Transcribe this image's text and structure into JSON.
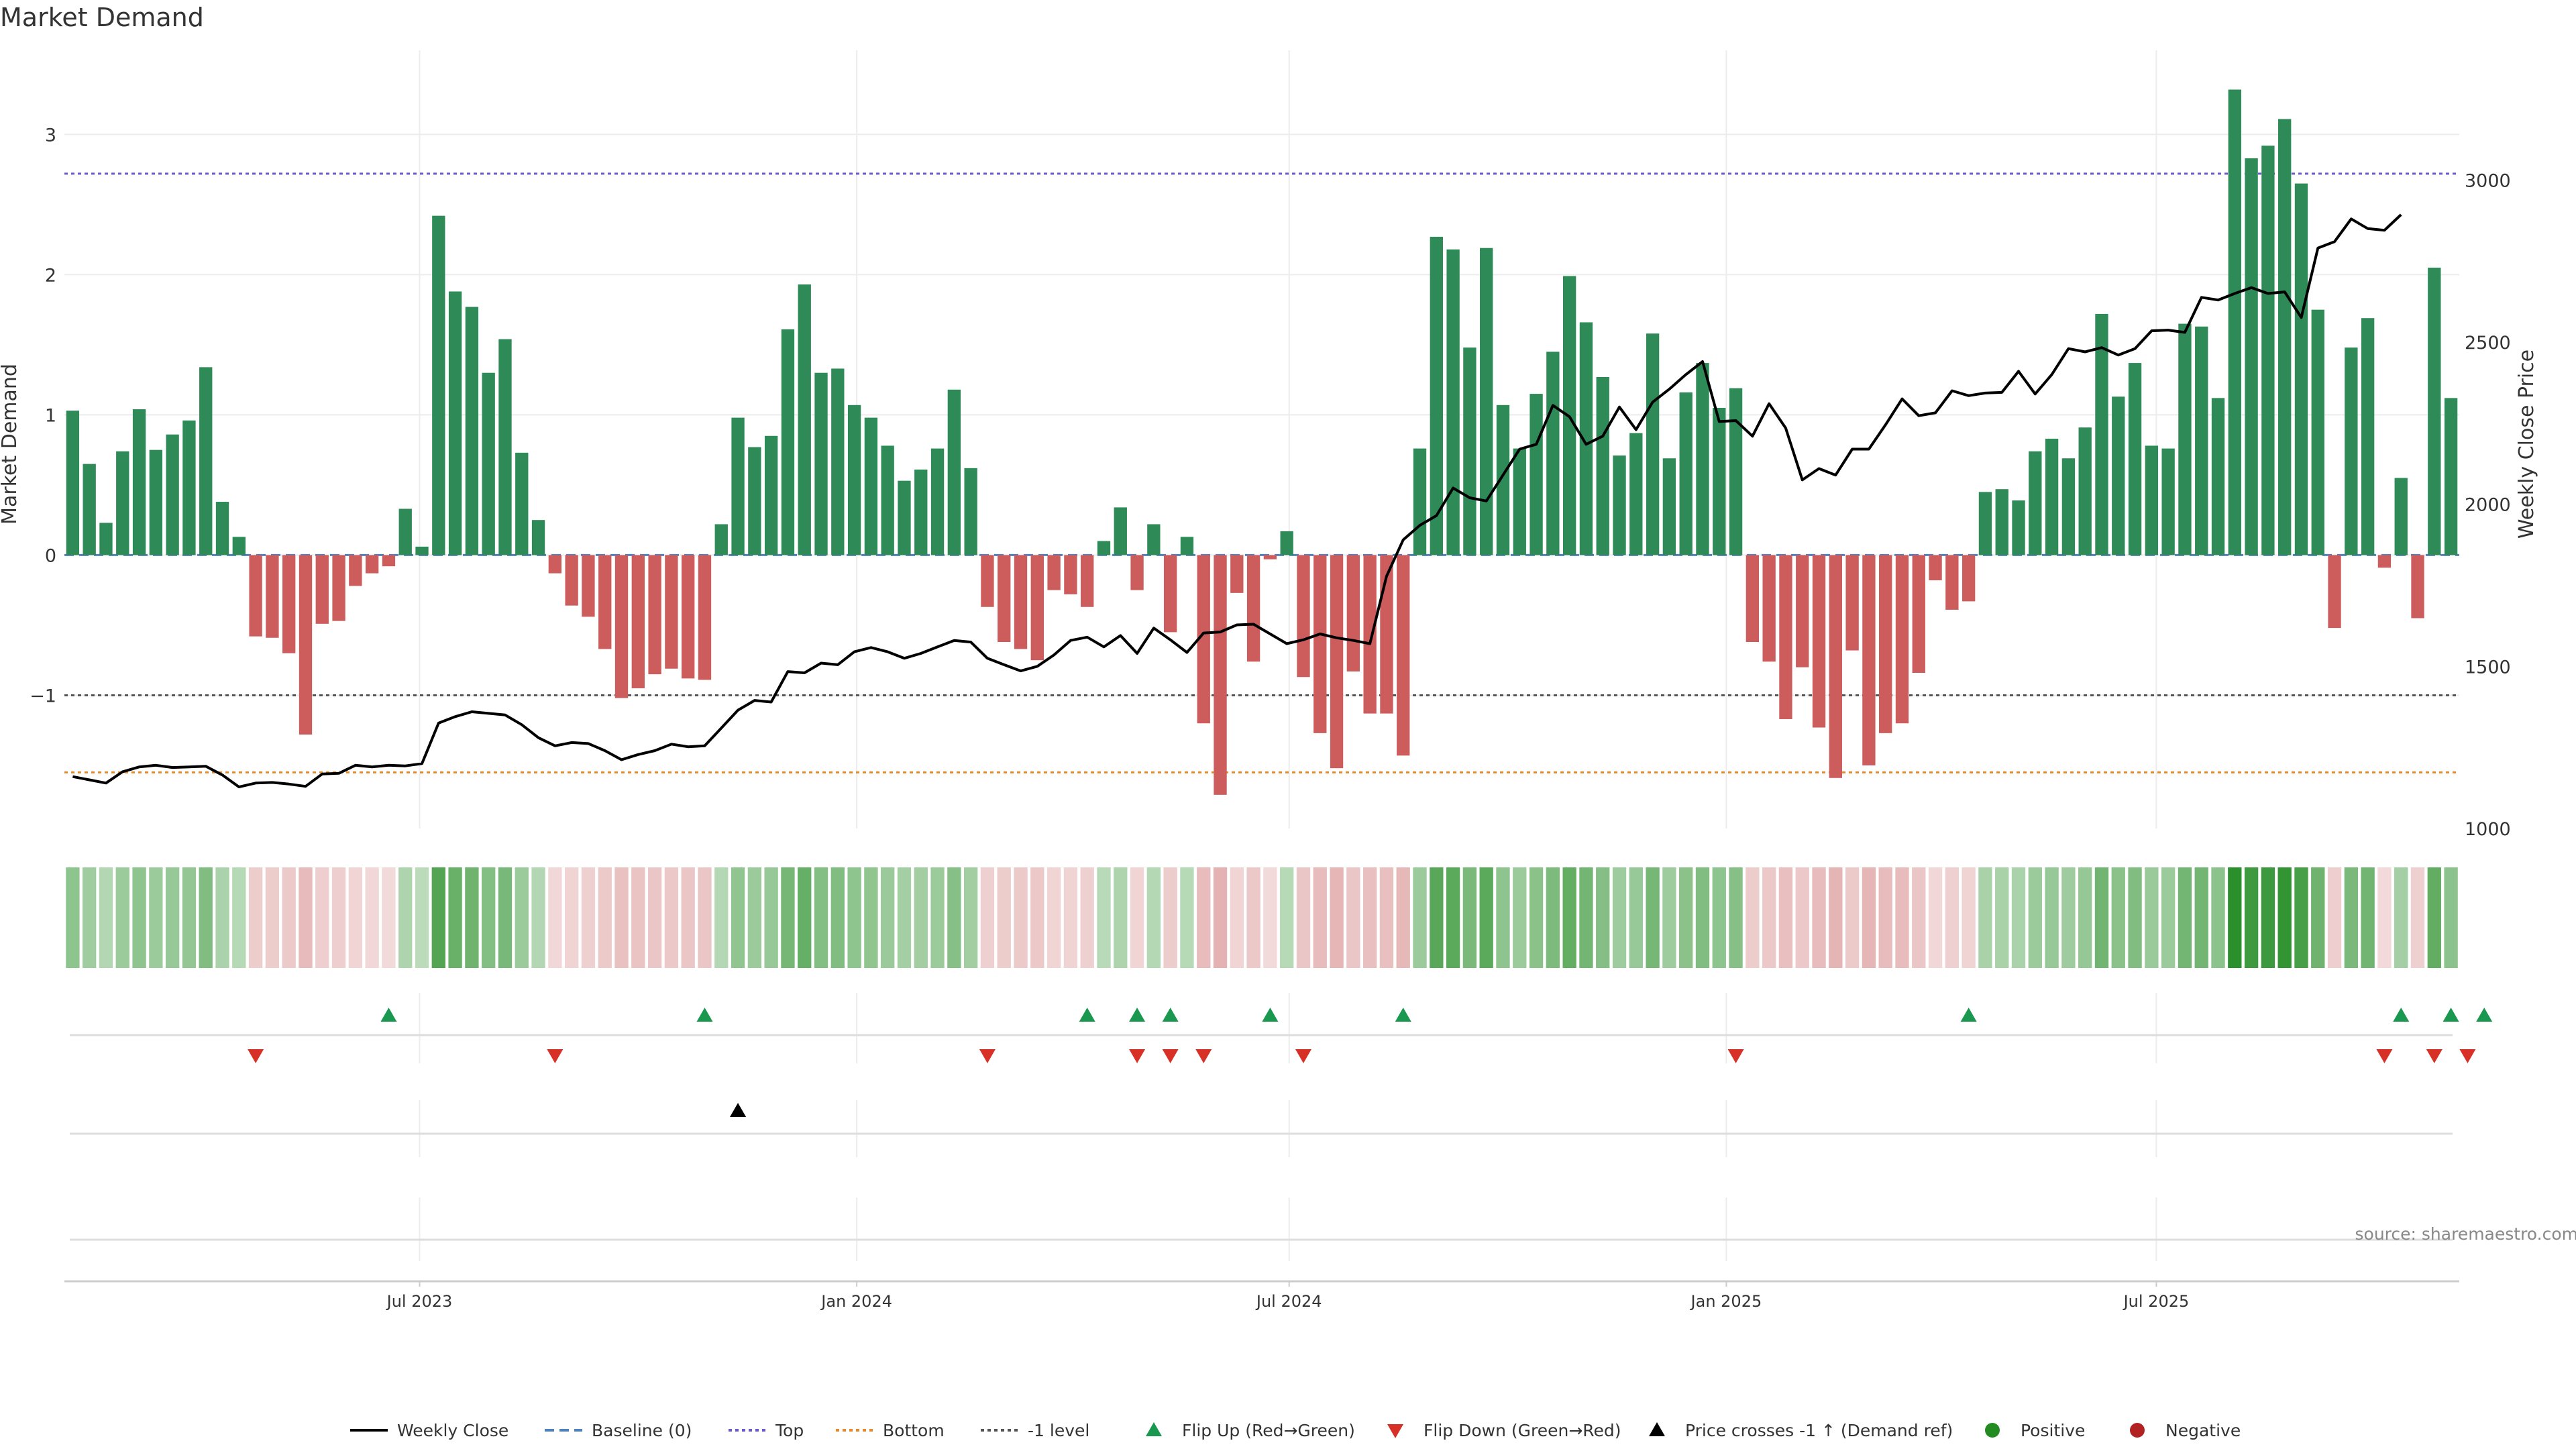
{
  "title": "Market Demand",
  "source": "source: sharemaestro.com",
  "colors": {
    "positive": "#2e8b57",
    "negative": "#cd5c5c",
    "price": "#000000",
    "baseline": "#4f81bd",
    "top": "#6a5acd",
    "bottom": "#e38b2c",
    "minus1": "#555555",
    "flip_up": "#1a9850",
    "flip_down": "#d73027",
    "cross": "#000000",
    "dot_positive": "#228b22",
    "dot_negative": "#b22222"
  },
  "chart_data": {
    "type": "bar",
    "ylabel_left": "Market Demand",
    "ylabel_right": "Weekly Close Price",
    "ylim_left": [
      -1.95,
      3.6
    ],
    "ylim_right": [
      1000,
      3400
    ],
    "yticks_left": [
      -1,
      0,
      1,
      2,
      3
    ],
    "yticks_left_labels": [
      "−1",
      "0",
      "1",
      "2",
      "3"
    ],
    "yticks_right": [
      1000,
      1500,
      2000,
      2500,
      3000
    ],
    "reference_lines": {
      "top": 2.72,
      "bottom": -1.55,
      "minus1": -1,
      "baseline": 0
    },
    "x_start": "2023-02-05",
    "x_step_days": 7,
    "xticks": [
      "2023-07-01",
      "2024-01-01",
      "2024-07-01",
      "2025-01-01",
      "2025-07-01"
    ],
    "xtick_labels": [
      "Jul 2023",
      "Jan 2024",
      "Jul 2024",
      "Jan 2025",
      "Jul 2025"
    ],
    "demand": [
      1.03,
      0.65,
      0.23,
      0.74,
      1.04,
      0.75,
      0.86,
      0.96,
      1.34,
      0.38,
      0.13,
      -0.58,
      -0.59,
      -0.7,
      -1.28,
      -0.49,
      -0.47,
      -0.22,
      -0.13,
      -0.08,
      0.33,
      0.06,
      2.42,
      1.88,
      1.77,
      1.3,
      1.54,
      0.73,
      0.25,
      -0.13,
      -0.36,
      -0.44,
      -0.67,
      -1.02,
      -0.95,
      -0.85,
      -0.81,
      -0.88,
      -0.89,
      0.22,
      0.98,
      0.77,
      0.85,
      1.61,
      1.93,
      1.3,
      1.33,
      1.07,
      0.98,
      0.78,
      0.53,
      0.61,
      0.76,
      1.18,
      0.62,
      -0.37,
      -0.62,
      -0.67,
      -0.75,
      -0.25,
      -0.28,
      -0.37,
      0.1,
      0.34,
      -0.25,
      0.22,
      -0.55,
      0.13,
      -1.2,
      -1.71,
      -0.27,
      -0.76,
      -0.03,
      0.17,
      -0.87,
      -1.27,
      -1.52,
      -0.83,
      -1.13,
      -1.13,
      -1.43,
      0.76,
      2.27,
      2.18,
      1.48,
      2.19,
      1.07,
      0.76,
      1.15,
      1.45,
      1.99,
      1.66,
      1.27,
      0.71,
      0.87,
      1.58,
      0.69,
      1.16,
      1.37,
      1.05,
      1.19,
      -0.62,
      -0.76,
      -1.17,
      -0.8,
      -1.23,
      -1.59,
      -0.68,
      -1.5,
      -1.27,
      -1.2,
      -0.84,
      -0.18,
      -0.39,
      -0.33,
      0.45,
      0.47,
      0.39,
      0.74,
      0.83,
      0.69,
      0.91,
      1.72,
      1.13,
      1.37,
      0.78,
      0.76,
      1.65,
      1.63,
      1.12,
      3.32,
      2.83,
      2.92,
      3.11,
      2.65,
      1.75,
      -0.52,
      1.48,
      1.69,
      -0.09,
      0.55,
      -0.45,
      2.05,
      1.12
    ],
    "price": [
      1160,
      1150,
      1140,
      1175,
      1190,
      1195,
      1188,
      1190,
      1192,
      1165,
      1128,
      1140,
      1142,
      1137,
      1130,
      1168,
      1170,
      1195,
      1190,
      1195,
      1193,
      1200,
      1325,
      1345,
      1360,
      1355,
      1350,
      1320,
      1280,
      1255,
      1265,
      1262,
      1240,
      1212,
      1228,
      1240,
      1260,
      1252,
      1255,
      1310,
      1365,
      1395,
      1390,
      1484,
      1480,
      1510,
      1505,
      1545,
      1558,
      1545,
      1525,
      1540,
      1560,
      1580,
      1575,
      1525,
      1505,
      1486,
      1500,
      1535,
      1580,
      1590,
      1560,
      1595,
      1540,
      1618,
      1582,
      1543,
      1603,
      1606,
      1628,
      1630,
      1600,
      1570,
      1582,
      1600,
      1588,
      1580,
      1570,
      1778,
      1890,
      1935,
      1965,
      2050,
      2020,
      2010,
      2090,
      2170,
      2185,
      2305,
      2270,
      2185,
      2210,
      2300,
      2230,
      2315,
      2355,
      2400,
      2440,
      2255,
      2258,
      2210,
      2310,
      2235,
      2075,
      2110,
      2090,
      2170,
      2170,
      2245,
      2325,
      2273,
      2282,
      2350,
      2335,
      2343,
      2345,
      2410,
      2340,
      2400,
      2480,
      2470,
      2483,
      2460,
      2480,
      2535,
      2537,
      2530,
      2638,
      2630,
      2650,
      2668,
      2650,
      2655,
      2576,
      2790,
      2810,
      2880,
      2850,
      2845,
      2893
    ],
    "flip_up_x": [
      "2023-06-18",
      "2023-10-29",
      "2024-04-07",
      "2024-04-28",
      "2024-05-12",
      "2024-06-23",
      "2024-08-18",
      "2025-04-13",
      "2025-10-12",
      "2025-11-02",
      "2025-11-16"
    ],
    "flip_down_x": [
      "2023-04-23",
      "2023-08-27",
      "2024-02-25",
      "2024-04-28",
      "2024-05-12",
      "2024-05-26",
      "2024-07-07",
      "2025-01-05",
      "2025-10-05",
      "2025-10-26",
      "2025-11-09"
    ],
    "price_cross_x": [
      "2023-11-12"
    ]
  },
  "legend": [
    {
      "label": "Weekly Close",
      "kind": "line",
      "color": "#000000"
    },
    {
      "label": "Baseline (0)",
      "kind": "dash",
      "color": "#4f81bd"
    },
    {
      "label": "Top",
      "kind": "dot",
      "color": "#6a5acd"
    },
    {
      "label": "Bottom",
      "kind": "dot",
      "color": "#e38b2c"
    },
    {
      "label": "-1 level",
      "kind": "dot",
      "color": "#555555"
    },
    {
      "label": "Flip Up (Red→Green)",
      "kind": "tri-up",
      "color": "#1a9850"
    },
    {
      "label": "Flip Down (Green→Red)",
      "kind": "tri-down",
      "color": "#d73027"
    },
    {
      "label": "Price crosses -1 ↑ (Demand ref)",
      "kind": "tri-up",
      "color": "#000000"
    },
    {
      "label": "Positive",
      "kind": "circle",
      "color": "#228b22"
    },
    {
      "label": "Negative",
      "kind": "circle",
      "color": "#b22222"
    }
  ]
}
